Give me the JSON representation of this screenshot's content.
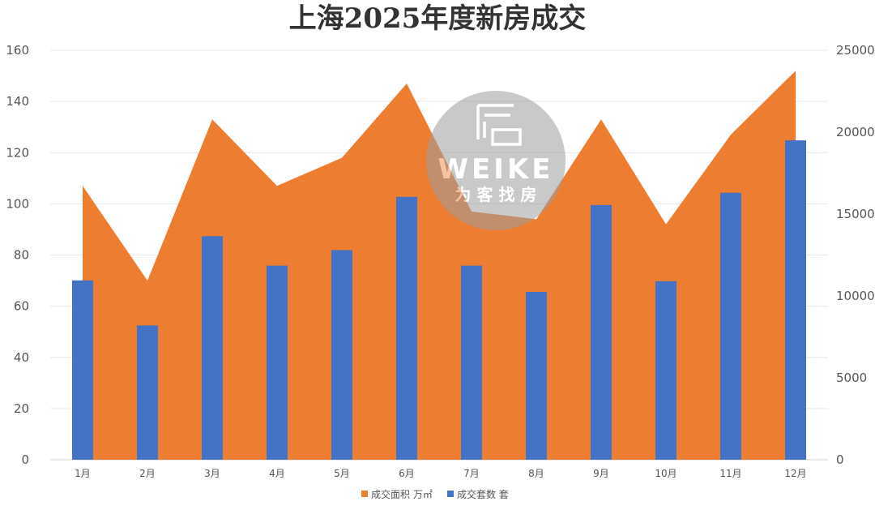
{
  "chart_data": {
    "type": "bar",
    "title": "上海2025年度新房成交",
    "categories": [
      "1月",
      "2月",
      "3月",
      "4月",
      "5月",
      "6月",
      "7月",
      "8月",
      "9月",
      "10月",
      "11月",
      "12月"
    ],
    "series": [
      {
        "name": "成交面积 万㎡",
        "chart_type": "area",
        "axis": "left",
        "color": "#ED7D31",
        "values": [
          107,
          70,
          133,
          107,
          118,
          147,
          97,
          94,
          133,
          92,
          127,
          152
        ]
      },
      {
        "name": "成交套数 套",
        "chart_type": "bar",
        "axis": "right",
        "color": "#4472C4",
        "values": [
          10950,
          8200,
          13650,
          11850,
          12800,
          16050,
          11850,
          10250,
          15550,
          10900,
          16300,
          19500
        ]
      }
    ],
    "y_left": {
      "min": 0,
      "max": 160,
      "ticks": [
        0,
        20,
        40,
        60,
        80,
        100,
        120,
        140,
        160
      ]
    },
    "y_right": {
      "min": 0,
      "max": 25000,
      "ticks": [
        0,
        5000,
        10000,
        15000,
        20000,
        25000
      ]
    },
    "grid": true,
    "legend_position": "bottom"
  },
  "watermark": {
    "brand": "WEIKE",
    "tagline": "为 客 找 房"
  }
}
